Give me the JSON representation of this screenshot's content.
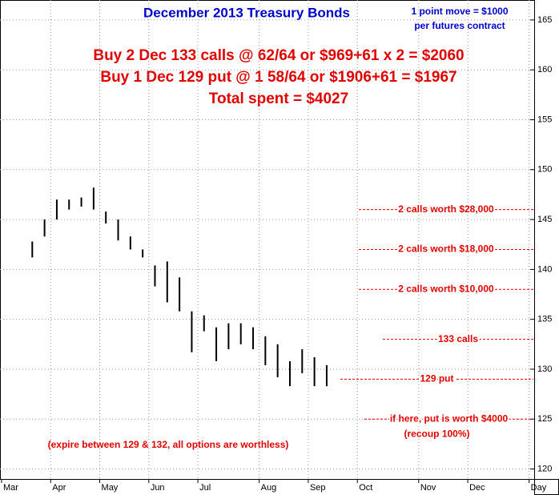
{
  "chart_data": {
    "type": "hlbar",
    "title": "December 2013 Treasury Bonds",
    "note_1": "1 point move = $1000",
    "note_2": "per futures contract",
    "headline": [
      "Buy 2 Dec 133 calls @ 62/64 or $969+61 x 2 = $2060",
      "Buy 1 Dec 129 put @ 1 58/64 or $1906+61 = $1967",
      "Total spent = $4027"
    ],
    "footnote": "(expire between 129 & 132, all options are worthless)",
    "categories": [
      "Mar",
      null,
      null,
      null,
      "Apr",
      null,
      null,
      null,
      "May",
      null,
      null,
      null,
      "Jun",
      null,
      null,
      null,
      "Jul",
      null,
      null,
      null,
      null,
      "Aug",
      null,
      null,
      null,
      "Sep",
      null,
      null,
      null,
      "Oct",
      null,
      null,
      null,
      null,
      "Nov",
      null,
      null,
      null,
      "Dec",
      null,
      null,
      null,
      null,
      "Day"
    ],
    "high": [
      null,
      null,
      142.8,
      145,
      147,
      147,
      147.2,
      148.2,
      145.8,
      145,
      143.3,
      142,
      140.4,
      140.8,
      139.2,
      135.8,
      135.4,
      134.2,
      134.6,
      134.6,
      134.2,
      133.3,
      132.5,
      130.8,
      132,
      131.2,
      130.4,
      null,
      null,
      null,
      null,
      null,
      null,
      null,
      null,
      null,
      null,
      null,
      null,
      null,
      null,
      null,
      null,
      null
    ],
    "low": [
      null,
      null,
      141.2,
      143.3,
      145,
      146,
      146.3,
      146,
      144.6,
      142.9,
      142,
      141.2,
      138.3,
      136.7,
      135.8,
      131.7,
      133.8,
      130.8,
      132,
      132.5,
      132,
      130.4,
      129.2,
      128.3,
      129.6,
      128.3,
      128.3,
      null,
      null,
      null,
      null,
      null,
      null,
      null,
      null,
      null,
      null,
      null,
      null,
      null,
      null,
      null,
      null,
      null
    ],
    "color": "#000000",
    "ylim": [
      119,
      167
    ],
    "yticks": [
      120,
      125,
      130,
      135,
      140,
      145,
      150,
      155,
      160,
      165
    ],
    "grid": true,
    "annotations": [
      {
        "text": "2 calls worth $28,000",
        "y": 146
      },
      {
        "text": "2 calls worth $18,000",
        "y": 142
      },
      {
        "text": "2 calls worth $10,000",
        "y": 138
      },
      {
        "text": "133 calls",
        "y": 133
      },
      {
        "text": "129 put",
        "y": 129
      },
      {
        "text": "if here, put is worth $4000",
        "y": 125,
        "sub": "(recoup 100%)"
      }
    ]
  }
}
